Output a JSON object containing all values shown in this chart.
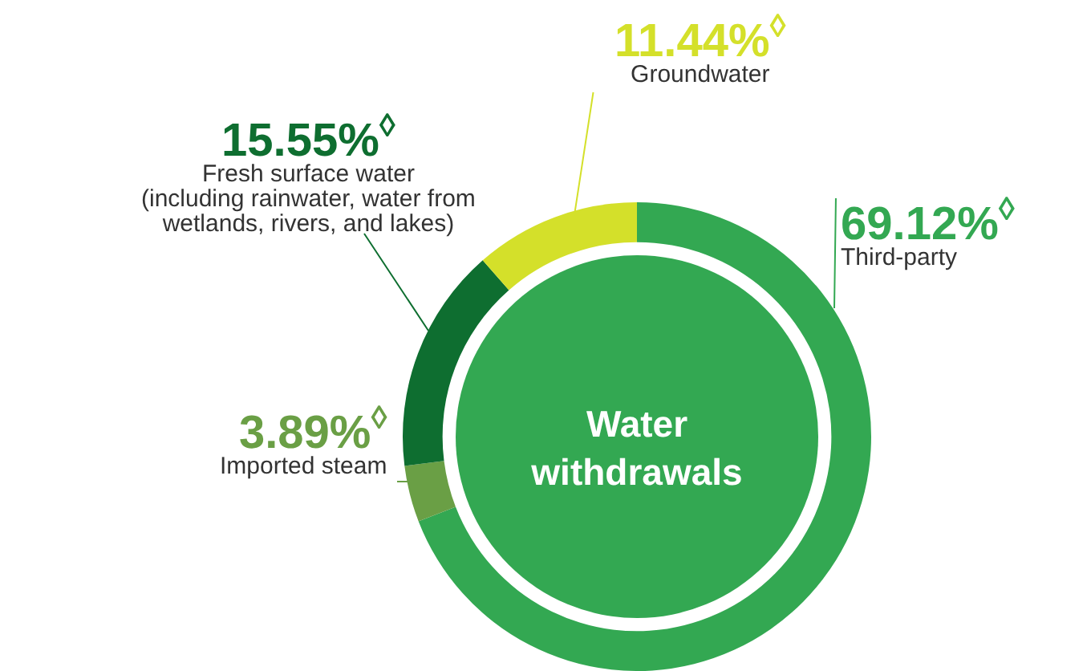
{
  "chart_data": {
    "type": "donut",
    "title": "Water withdrawals",
    "categories": [
      "Third-party",
      "Imported steam",
      "Fresh surface water\n(including rainwater, water from\nwetlands, rivers, and lakes)",
      "Groundwater"
    ],
    "values": [
      69.12,
      3.89,
      15.55,
      11.44
    ],
    "colors": [
      "#33a852",
      "#6a9f45",
      "#0e6e30",
      "#d4e02a"
    ],
    "value_labels": [
      "69.12%$^{◊}$",
      "3.89%$^{◊}$",
      "15.55%$^{◊}$",
      "11.44%$^{◊}$"
    ]
  }
}
